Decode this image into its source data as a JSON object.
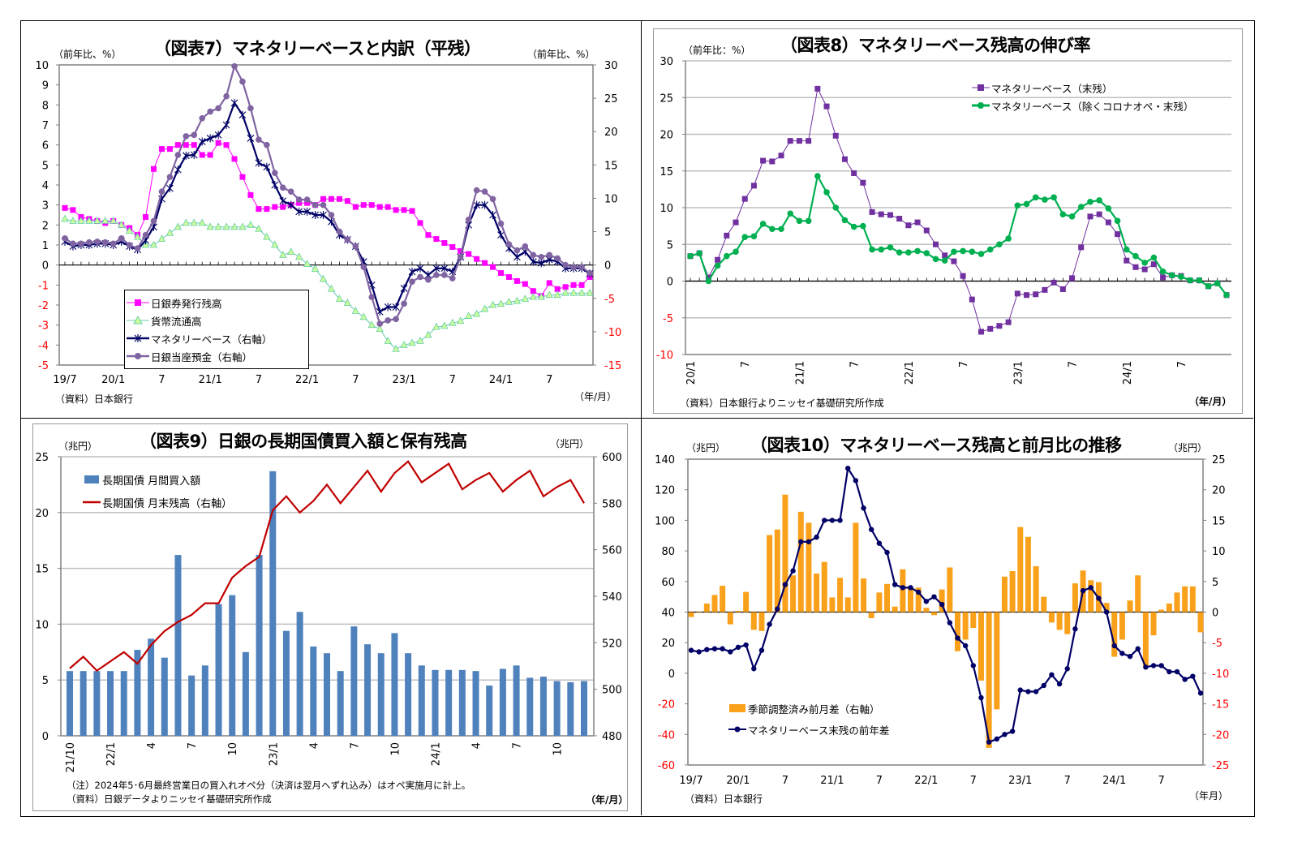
{
  "chart_data": [
    {
      "id": "fig7",
      "type": "line",
      "title": "（図表7）マネタリーベースと内訳（平残）",
      "ylabel_left": "（前年比、%）",
      "ylabel_right": "（前年比、%）",
      "xlabel": "（年/月）",
      "source": "（資料）日本銀行",
      "x_range": [
        "2019-07",
        "2024-12"
      ],
      "x_ticks": [
        {
          "month": "2019-07",
          "label": "19/7"
        },
        {
          "month": "2020-01",
          "label": "20/1"
        },
        {
          "month": "2020-07",
          "label": "7"
        },
        {
          "month": "2021-01",
          "label": "21/1"
        },
        {
          "month": "2021-07",
          "label": "7"
        },
        {
          "month": "2022-01",
          "label": "22/1"
        },
        {
          "month": "2022-07",
          "label": "7"
        },
        {
          "month": "2023-01",
          "label": "23/1"
        },
        {
          "month": "2023-07",
          "label": "7"
        },
        {
          "month": "2024-01",
          "label": "24/1"
        },
        {
          "month": "2024-07",
          "label": "7"
        }
      ],
      "ylim_left": [
        -5,
        10
      ],
      "ystep_left": 1,
      "ylim_right": [
        -15,
        30
      ],
      "ystep_right": 5,
      "negative_label_color": "#ff0000",
      "grid": false,
      "legend_position": "bottom-left",
      "series": [
        {
          "name": "日銀券発行残高",
          "axis": "left",
          "color": "#ff00ff",
          "marker": "square",
          "values": [
            2.85,
            2.75,
            2.4,
            2.3,
            2.2,
            2.1,
            2.2,
            2.0,
            1.85,
            1.5,
            2.4,
            4.8,
            5.8,
            5.8,
            6.0,
            6.0,
            6.0,
            5.5,
            5.5,
            6.1,
            6.0,
            5.3,
            4.4,
            3.5,
            2.8,
            2.8,
            2.9,
            2.9,
            3.0,
            3.1,
            3.1,
            3.0,
            3.3,
            3.3,
            3.3,
            3.2,
            2.9,
            3.0,
            3.0,
            2.9,
            2.9,
            2.75,
            2.75,
            2.7,
            2.1,
            1.5,
            1.3,
            1.1,
            0.9,
            0.7,
            0.55,
            0.3,
            0.1,
            -0.1,
            -0.4,
            -0.6,
            -0.8,
            -0.95,
            -1.3,
            -1.55,
            -0.9,
            -1.2,
            -1.1,
            -1.0,
            -1.0,
            -0.6
          ]
        },
        {
          "name": "貨幣流通高",
          "axis": "left",
          "color": "#66ccaa",
          "marker": "triangle",
          "values": [
            2.3,
            2.2,
            2.2,
            2.2,
            2.2,
            2.2,
            2.2,
            2.0,
            1.7,
            1.4,
            1.0,
            1.0,
            1.3,
            1.6,
            1.9,
            2.1,
            2.1,
            2.1,
            1.9,
            1.9,
            1.9,
            1.9,
            1.9,
            2.0,
            1.8,
            1.4,
            1.0,
            0.5,
            0.65,
            0.4,
            0.05,
            -0.2,
            -0.7,
            -1.2,
            -1.7,
            -1.9,
            -2.3,
            -2.6,
            -3.0,
            -3.2,
            -3.8,
            -4.2,
            -4.0,
            -3.9,
            -3.8,
            -3.5,
            -3.1,
            -3.05,
            -2.9,
            -2.8,
            -2.55,
            -2.45,
            -2.2,
            -2.0,
            -1.95,
            -1.85,
            -1.8,
            -1.7,
            -1.6,
            -1.6,
            -1.5,
            -1.5,
            -1.4,
            -1.4,
            -1.4,
            -1.4
          ]
        },
        {
          "name": "マネタリーベース（右軸）",
          "axis": "right",
          "color": "#000066",
          "marker": "star",
          "values": [
            3.5,
            2.8,
            3.0,
            3.0,
            3.2,
            3.2,
            3.0,
            3.5,
            2.8,
            2.3,
            3.7,
            5.7,
            9.9,
            11.5,
            14.3,
            16.4,
            16.5,
            18.5,
            19.0,
            19.5,
            21.0,
            24.3,
            22.5,
            19.0,
            15.3,
            14.7,
            12.0,
            9.6,
            9.0,
            8.0,
            8.0,
            7.5,
            7.5,
            6.5,
            4.5,
            3.8,
            2.8,
            0.5,
            -3.0,
            -7.0,
            -6.3,
            -6.3,
            -3.5,
            -1.0,
            -0.5,
            -1.5,
            -0.5,
            -0.5,
            -1.0,
            1.2,
            6.0,
            9.0,
            9.0,
            7.5,
            4.5,
            2.5,
            1.2,
            2.0,
            0.5,
            0.3,
            0.8,
            0.5,
            -0.5,
            -0.5,
            -0.5,
            -1.3
          ]
        },
        {
          "name": "日銀当座預金（右軸）",
          "axis": "right",
          "color": "#8064a2",
          "marker": "circle",
          "values": [
            4.0,
            3.2,
            3.2,
            3.4,
            3.5,
            3.4,
            3.2,
            4.0,
            3.0,
            2.5,
            4.5,
            6.6,
            11.0,
            13.2,
            16.5,
            19.3,
            19.5,
            22.0,
            23.0,
            23.5,
            25.3,
            29.8,
            27.5,
            23.5,
            18.8,
            18.0,
            13.8,
            11.6,
            11.0,
            9.8,
            9.8,
            9.0,
            9.0,
            7.5,
            5.0,
            3.8,
            2.8,
            -0.3,
            -4.8,
            -8.8,
            -8.3,
            -8.1,
            -5.8,
            -2.5,
            -1.8,
            -2.2,
            -1.5,
            -1.5,
            -2.0,
            1.2,
            6.8,
            11.2,
            11.0,
            9.9,
            6.2,
            3.1,
            2.2,
            2.8,
            1.5,
            1.2,
            1.5,
            1.0,
            0.0,
            -0.3,
            -0.3,
            -1.2
          ]
        }
      ]
    },
    {
      "id": "fig8",
      "type": "line",
      "title": "（図表8）マネタリーベース残高の伸び率",
      "ylabel_left": "（前年比：%）",
      "xlabel": "（年/月）",
      "source": "（資料）日本銀行よりニッセイ基礎研究所作成",
      "x_range": [
        "2020-01",
        "2024-12"
      ],
      "x_ticks": [
        {
          "month": "2020-01",
          "label": "20/1"
        },
        {
          "month": "2020-07",
          "label": "7"
        },
        {
          "month": "2021-01",
          "label": "21/1"
        },
        {
          "month": "2021-07",
          "label": "7"
        },
        {
          "month": "2022-01",
          "label": "22/1"
        },
        {
          "month": "2022-07",
          "label": "7"
        },
        {
          "month": "2023-01",
          "label": "23/1"
        },
        {
          "month": "2023-07",
          "label": "7"
        },
        {
          "month": "2024-01",
          "label": "24/1"
        },
        {
          "month": "2024-07",
          "label": "7"
        }
      ],
      "ylim_left": [
        -10,
        30
      ],
      "ystep_left": 5,
      "negative_label_color": "#ff0000",
      "grid": true,
      "legend_position": "top-right",
      "series": [
        {
          "name": "マネタリーベース（末残）",
          "axis": "left",
          "color": "#7030a0",
          "marker": "square",
          "values": [
            3.4,
            3.8,
            0.5,
            2.9,
            6.2,
            8.0,
            11.2,
            13.0,
            16.4,
            16.3,
            17.1,
            19.1,
            19.1,
            19.1,
            26.2,
            23.8,
            19.8,
            16.6,
            14.7,
            13.4,
            9.4,
            9.1,
            9.0,
            8.5,
            7.6,
            8.0,
            6.9,
            5.0,
            3.5,
            2.7,
            0.7,
            -2.5,
            -6.9,
            -6.5,
            -6.1,
            -5.6,
            -1.7,
            -1.9,
            -1.8,
            -1.2,
            -0.2,
            -1.1,
            0.4,
            4.6,
            8.8,
            9.1,
            8.0,
            6.4,
            2.8,
            1.9,
            1.6,
            2.3,
            0.5,
            0.8,
            0.7,
            0.1,
            0.1,
            -0.7,
            -0.3,
            -1.9
          ]
        },
        {
          "name": "マネタリーベース（除くコロナオペ・末残）",
          "axis": "left",
          "color": "#00b050",
          "marker": "circle",
          "values": [
            3.4,
            3.8,
            0.0,
            2.1,
            3.4,
            4.0,
            6.0,
            6.1,
            7.8,
            7.1,
            7.1,
            9.2,
            8.2,
            8.2,
            14.3,
            12.1,
            10.0,
            8.3,
            7.4,
            7.5,
            4.3,
            4.3,
            4.6,
            3.9,
            3.9,
            4.1,
            3.8,
            3.0,
            2.8,
            4.0,
            4.1,
            4.0,
            3.7,
            4.3,
            5.0,
            5.8,
            10.3,
            10.5,
            11.4,
            11.1,
            11.4,
            9.1,
            8.8,
            10.1,
            10.8,
            11.0,
            9.9,
            8.2,
            4.3,
            3.4,
            2.5,
            3.2,
            1.3,
            0.8,
            0.6,
            0.1,
            0.1,
            -0.7,
            -0.3,
            -1.9
          ]
        }
      ]
    },
    {
      "id": "fig9",
      "type": "bar",
      "title": "（図表9）日銀の長期国債買入額と保有残高",
      "ylabel_left": "（兆円）",
      "ylabel_right": "（兆円）",
      "xlabel": "（年/月）",
      "note": "（注）2024年5･6月最終営業日の買入れオペ分（決済は翌月へずれ込み）はオペ実施月に計上。",
      "source": "（資料）日銀データよりニッセイ基礎研究所作成",
      "x_range": [
        "2021-10",
        "2024-12"
      ],
      "x_ticks": [
        {
          "month": "2021-10",
          "label": "21/10"
        },
        {
          "month": "2022-01",
          "label": "22/1"
        },
        {
          "month": "2022-04",
          "label": "4"
        },
        {
          "month": "2022-07",
          "label": "7"
        },
        {
          "month": "2022-10",
          "label": "10"
        },
        {
          "month": "2023-01",
          "label": "23/1"
        },
        {
          "month": "2023-04",
          "label": "4"
        },
        {
          "month": "2023-07",
          "label": "7"
        },
        {
          "month": "2023-10",
          "label": "10"
        },
        {
          "month": "2024-01",
          "label": "24/1"
        },
        {
          "month": "2024-04",
          "label": "4"
        },
        {
          "month": "2024-07",
          "label": "7"
        },
        {
          "month": "2024-10",
          "label": "10"
        }
      ],
      "ylim_left": [
        0,
        25
      ],
      "ystep_left": 5,
      "ylim_right": [
        480,
        600
      ],
      "ystep_right": 20,
      "grid": true,
      "legend_position": "top-left",
      "series": [
        {
          "name": "長期国債 月間買入額",
          "axis": "left",
          "kind": "bar",
          "color": "#4f81bd",
          "values": [
            5.8,
            5.8,
            5.8,
            5.8,
            5.8,
            7.7,
            8.7,
            7.0,
            16.2,
            5.4,
            6.3,
            11.8,
            12.6,
            7.5,
            16.2,
            23.7,
            9.4,
            11.1,
            8.0,
            7.4,
            5.8,
            9.8,
            8.2,
            7.4,
            9.2,
            7.4,
            6.3,
            5.9,
            5.9,
            5.9,
            5.8,
            4.5,
            6.0,
            6.3,
            5.2,
            5.3,
            4.9,
            4.8,
            4.9
          ]
        },
        {
          "name": "長期国債 月末残高（右軸）",
          "axis": "right",
          "kind": "line",
          "color": "#c00000",
          "values": [
            509,
            514,
            508,
            512,
            516,
            511,
            519,
            525,
            529,
            532,
            537,
            537,
            548,
            553,
            557,
            577,
            583,
            576,
            581,
            588,
            580,
            587,
            594,
            585,
            593,
            598,
            589,
            593,
            597,
            586,
            590,
            593,
            585,
            590,
            594,
            583,
            587,
            590,
            580
          ]
        }
      ]
    },
    {
      "id": "fig10",
      "type": "bar",
      "title": "（図表10）マネタリーベース残高と前月比の推移",
      "ylabel_left": "（兆円）",
      "ylabel_right": "（兆円）",
      "xlabel": "（年月）",
      "source": "（資料）日本銀行",
      "x_range": [
        "2019-07",
        "2024-12"
      ],
      "x_ticks": [
        {
          "month": "2019-07",
          "label": "19/7"
        },
        {
          "month": "2020-01",
          "label": "20/1"
        },
        {
          "month": "2020-07",
          "label": "7"
        },
        {
          "month": "2021-01",
          "label": "21/1"
        },
        {
          "month": "2021-07",
          "label": "7"
        },
        {
          "month": "2022-01",
          "label": "22/1"
        },
        {
          "month": "2022-07",
          "label": "7"
        },
        {
          "month": "2023-01",
          "label": "23/1"
        },
        {
          "month": "2023-07",
          "label": "7"
        },
        {
          "month": "2024-01",
          "label": "24/1"
        },
        {
          "month": "2024-07",
          "label": "7"
        }
      ],
      "ylim_left": [
        -60,
        140
      ],
      "ystep_left": 20,
      "ylim_right": [
        -25,
        25
      ],
      "ystep_right": 5,
      "negative_label_color": "#ff0000",
      "grid": false,
      "legend_position": "bottom-left",
      "series": [
        {
          "name": "季節調整済み前月差（右軸）",
          "axis": "right",
          "kind": "bar",
          "color": "#f9a11b",
          "values": [
            -0.8,
            -0.1,
            1.4,
            2.8,
            4.3,
            -2.0,
            0.2,
            3.3,
            -2.9,
            -3.1,
            12.6,
            13.5,
            19.2,
            6.0,
            16.4,
            14.6,
            6.3,
            8.2,
            2.4,
            5.6,
            2.4,
            14.6,
            5.5,
            -1.0,
            3.2,
            4.6,
            0.9,
            7.0,
            4.0,
            4.0,
            0.7,
            -0.5,
            3.7,
            7.3,
            -6.4,
            -4.5,
            -2.6,
            -11.2,
            -22.2,
            -15.9,
            5.8,
            6.7,
            13.9,
            12.3,
            7.5,
            2.5,
            -1.7,
            -2.9,
            -3.6,
            4.7,
            6.8,
            5.2,
            4.9,
            1.5,
            -7.3,
            -4.5,
            1.9,
            6.0,
            -8.9,
            -3.8,
            0.4,
            1.4,
            3.2,
            4.2,
            4.2,
            -3.3
          ]
        },
        {
          "name": "マネタリーベース末残の前年差",
          "axis": "left",
          "kind": "line",
          "color": "#000066",
          "marker": "circle",
          "values": [
            15,
            14,
            15.5,
            16,
            16,
            14,
            17,
            18.5,
            3,
            15,
            32,
            42,
            58,
            67,
            86,
            86,
            89,
            100,
            100,
            100,
            134,
            126,
            108,
            94,
            85,
            79,
            58,
            56,
            56,
            53,
            47,
            50,
            45,
            33,
            23,
            18,
            5,
            -16,
            -45,
            -43,
            -40,
            -38,
            -11,
            -12,
            -12,
            -8,
            -1,
            -7,
            3,
            29,
            54,
            56,
            49,
            40,
            18,
            13,
            11,
            16,
            4,
            5,
            5,
            1,
            1,
            -4,
            -2,
            -13
          ]
        }
      ]
    }
  ]
}
